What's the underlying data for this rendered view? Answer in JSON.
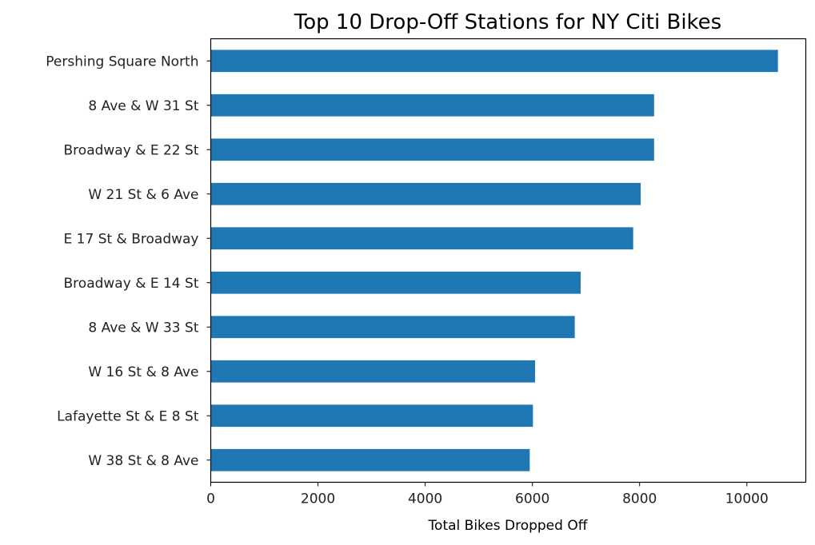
{
  "chart_data": {
    "type": "bar",
    "orientation": "horizontal",
    "title": "Top 10 Drop-Off Stations for NY Citi Bikes",
    "xlabel": "Total Bikes Dropped Off",
    "ylabel": "",
    "xlim": [
      0,
      11100
    ],
    "xticks": [
      0,
      2000,
      4000,
      6000,
      8000,
      10000
    ],
    "grid": false,
    "legend": "none",
    "bar_color": "#1f77b4",
    "categories": [
      "Pershing Square North",
      "8 Ave & W 31 St",
      "Broadway & E 22 St",
      "W 21 St & 6 Ave",
      "E 17 St & Broadway",
      "Broadway & E 14 St",
      "8 Ave & W 33 St",
      "W 16 St & 8 Ave",
      "Lafayette St & E 8 St",
      "W 38 St & 8 Ave"
    ],
    "values": [
      10580,
      8270,
      8270,
      8020,
      7880,
      6900,
      6790,
      6050,
      6010,
      5950
    ]
  }
}
